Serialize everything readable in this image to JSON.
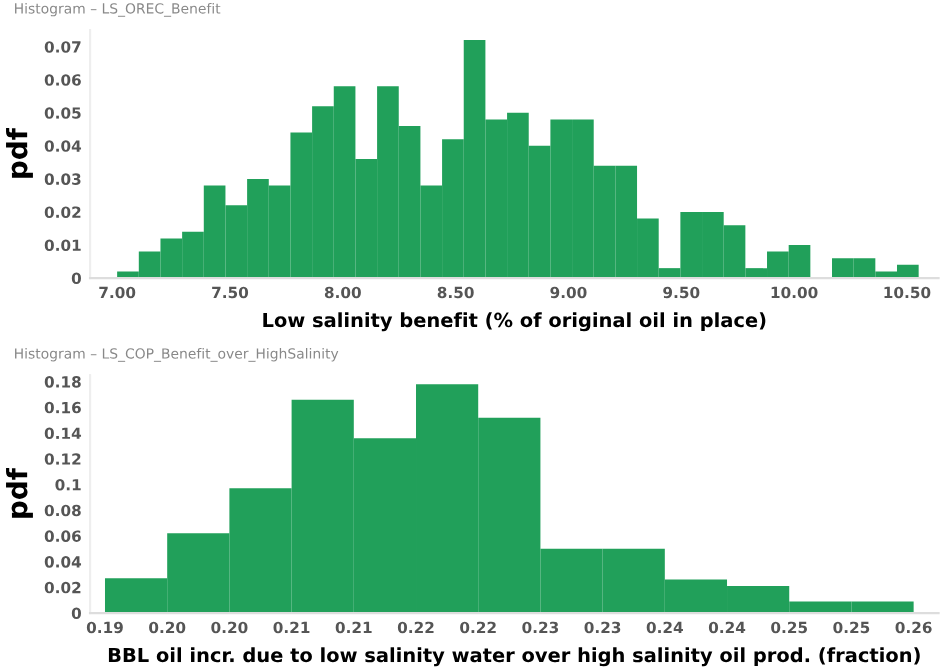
{
  "chart_data": [
    {
      "type": "histogram",
      "title": "Histogram – LS_OREC_Benefit",
      "xlabel": "Low salinity benefit (% of original oil in place)",
      "ylabel": "pdf",
      "color": "#21a05a",
      "bins": [
        7.0,
        7.096,
        7.192,
        7.288,
        7.384,
        7.48,
        7.576,
        7.672,
        7.768,
        7.864,
        7.96,
        8.056,
        8.152,
        8.248,
        8.344,
        8.44,
        8.536,
        8.632,
        8.728,
        8.824,
        8.92,
        9.016,
        9.112,
        9.208,
        9.304,
        9.4,
        9.496,
        9.592,
        9.688,
        9.784,
        9.88,
        9.976,
        10.072,
        10.168,
        10.264,
        10.36,
        10.456,
        10.552
      ],
      "values": [
        0.002,
        0.008,
        0.012,
        0.014,
        0.028,
        0.022,
        0.03,
        0.028,
        0.044,
        0.052,
        0.058,
        0.036,
        0.058,
        0.046,
        0.028,
        0.042,
        0.072,
        0.048,
        0.05,
        0.04,
        0.048,
        0.048,
        0.034,
        0.034,
        0.018,
        0.003,
        0.02,
        0.02,
        0.016,
        0.003,
        0.008,
        0.01,
        0,
        0.006,
        0.006,
        0.002,
        0.004
      ],
      "xlim": [
        6.88,
        10.64
      ],
      "ylim": [
        0,
        0.075
      ],
      "xticks": [
        {
          "value": 7.0,
          "label": "7.00"
        },
        {
          "value": 7.5,
          "label": "7.50"
        },
        {
          "value": 8.0,
          "label": "8.00"
        },
        {
          "value": 8.5,
          "label": "8.50"
        },
        {
          "value": 9.0,
          "label": "9.00"
        },
        {
          "value": 9.5,
          "label": "9.50"
        },
        {
          "value": 10.0,
          "label": "10.00"
        },
        {
          "value": 10.5,
          "label": "10.50"
        }
      ],
      "yticks": [
        0,
        0.01,
        0.02,
        0.03,
        0.04,
        0.05,
        0.06,
        0.07
      ],
      "grid": false
    },
    {
      "type": "histogram",
      "title": "Histogram – LS_COP_Benefit_over_HighSalinity",
      "xlabel": "BBL oil incr. due to low salinity water over high salinity oil prod. (fraction)",
      "ylabel": "pdf",
      "color": "#21a05a",
      "bins": [
        0.19,
        0.195,
        0.2,
        0.205,
        0.21,
        0.215,
        0.22,
        0.225,
        0.23,
        0.235,
        0.24,
        0.245,
        0.25,
        0.255
      ],
      "values": [
        0.027,
        0.062,
        0.097,
        0.166,
        0.136,
        0.178,
        0.152,
        0.05,
        0.05,
        0.026,
        0.021,
        0.009,
        0.009
      ],
      "xlim": [
        0.1888,
        0.257
      ],
      "ylim": [
        0,
        0.185
      ],
      "xticks": [
        {
          "value": 0.19,
          "label": "0.19"
        },
        {
          "value": 0.195,
          "label": "0.20"
        },
        {
          "value": 0.2,
          "label": "0.20"
        },
        {
          "value": 0.205,
          "label": "0.21"
        },
        {
          "value": 0.21,
          "label": "0.21"
        },
        {
          "value": 0.215,
          "label": "0.22"
        },
        {
          "value": 0.22,
          "label": "0.22"
        },
        {
          "value": 0.225,
          "label": "0.23"
        },
        {
          "value": 0.23,
          "label": "0.23"
        },
        {
          "value": 0.235,
          "label": "0.24"
        },
        {
          "value": 0.24,
          "label": "0.24"
        },
        {
          "value": 0.245,
          "label": "0.25"
        },
        {
          "value": 0.25,
          "label": "0.25"
        },
        {
          "value": 0.255,
          "label": "0.26"
        }
      ],
      "yticks": [
        0,
        0.02,
        0.04,
        0.06,
        0.08,
        0.1,
        0.12,
        0.14,
        0.16,
        0.18
      ],
      "grid": false
    }
  ]
}
